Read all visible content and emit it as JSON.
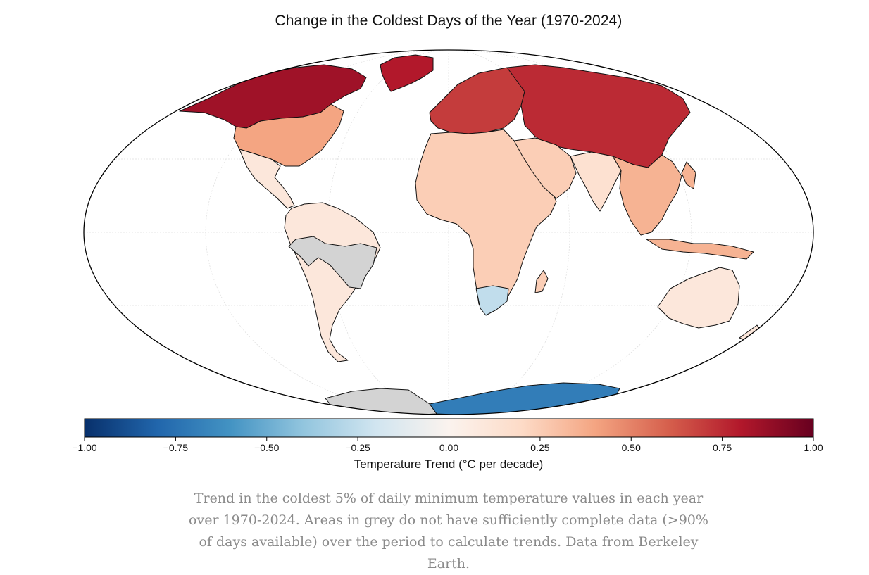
{
  "map": {
    "title": "Change in the Coldest Days of the Year (1970-2024)",
    "projection": "Mollweide",
    "data_source": "Berkeley Earth",
    "legend": {
      "label": "Temperature Trend (°C per decade)",
      "min": -1.0,
      "max": 1.0,
      "ticks": [
        "−1.00",
        "−0.75",
        "−0.50",
        "−0.25",
        "0.00",
        "0.25",
        "0.50",
        "0.75",
        "1.00"
      ],
      "colors": [
        "#08306b",
        "#2166ac",
        "#4393c3",
        "#92c5de",
        "#d1e5f0",
        "#fbf3ee",
        "#fddbc7",
        "#f4a582",
        "#d6604d",
        "#b2182b",
        "#67001f"
      ]
    },
    "no_data_color": "#d3d3d3",
    "regions": [
      {
        "name": "Alaska and northern Canada",
        "trend": 0.85
      },
      {
        "name": "United States",
        "trend": 0.4
      },
      {
        "name": "Greenland",
        "trend": 0.8
      },
      {
        "name": "Mexico and Central America",
        "trend": 0.1
      },
      {
        "name": "South America",
        "trend": 0.1
      },
      {
        "name": "Amazon basin",
        "trend": null
      },
      {
        "name": "Europe",
        "trend": 0.7
      },
      {
        "name": "Russia and northern Asia",
        "trend": 0.75
      },
      {
        "name": "Africa",
        "trend": 0.25
      },
      {
        "name": "Southern Africa",
        "trend": -0.25
      },
      {
        "name": "India",
        "trend": 0.15
      },
      {
        "name": "East Asia",
        "trend": 0.35
      },
      {
        "name": "Australia",
        "trend": 0.1
      },
      {
        "name": "East Antarctica",
        "trend": -0.7
      },
      {
        "name": "West Antarctica",
        "trend": null
      }
    ]
  },
  "caption": "Trend in the coldest 5% of daily minimum temperature values in each year over 1970-2024. Areas in grey do not have sufficiently complete data (>90% of days available) over the period to calculate trends. Data from Berkeley Earth."
}
